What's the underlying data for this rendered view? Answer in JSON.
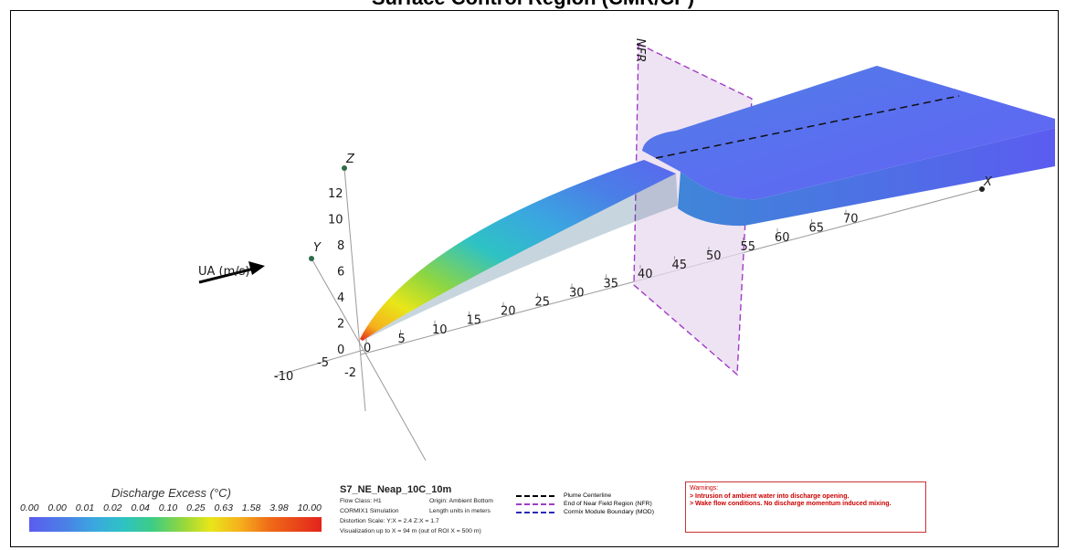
{
  "header": {
    "title": "Surface Control Region (CMR/CP)"
  },
  "axes": {
    "x_label": "X",
    "y_label": "Y",
    "z_label": "Z",
    "x_ticks": [
      "0",
      "5",
      "10",
      "15",
      "20",
      "25",
      "30",
      "35",
      "40",
      "45",
      "50",
      "55",
      "60",
      "65",
      "70"
    ],
    "y_ticks": [
      "-10",
      "-5",
      "-2"
    ],
    "z_ticks": [
      "0",
      "2",
      "4",
      "6",
      "8",
      "10",
      "12"
    ],
    "nfr_label": "NFR",
    "current_label": "UA (m/s)"
  },
  "colors": {
    "plume_low": "#e3231c",
    "plume_high": "#5b5cf0",
    "nfr_plane": "#e8d9ee",
    "nfr_edge": "#a13bc8",
    "warning": "#cc0000"
  },
  "legend": {
    "title": "Discharge Excess  (°C)",
    "ticks": [
      "0.00",
      "0.00",
      "0.01",
      "0.02",
      "0.04",
      "0.10",
      "0.25",
      "0.63",
      "1.58",
      "3.98",
      "10.00"
    ]
  },
  "info": {
    "title": "S7_NE_Neap_10C_10m",
    "flow_class": "Flow Class: H1",
    "origin": "Origin: Ambient Bottom",
    "simulation": "CORMIX1 Simulation",
    "units": "Length units in meters",
    "distortion": "Distortion Scale:  Y:X = 2.4    Z:X = 1.7",
    "visualization": "Visualization up to X = 94 m  (out of ROI X = 500 m)"
  },
  "line_legend": {
    "items": [
      {
        "label": "Plume Centerline",
        "color": "#000000"
      },
      {
        "label": "End of Near Field Region (NFR)",
        "color": "#a13bc8"
      },
      {
        "label": "Cormix Module Boundary (MOD)",
        "color": "#2a2ab8"
      }
    ]
  },
  "warnings": {
    "title": "Warnings:",
    "lines": [
      "> Intrusion of ambient water into discharge opening.",
      "> Wake flow conditions. No discharge momentum induced mixing."
    ]
  }
}
